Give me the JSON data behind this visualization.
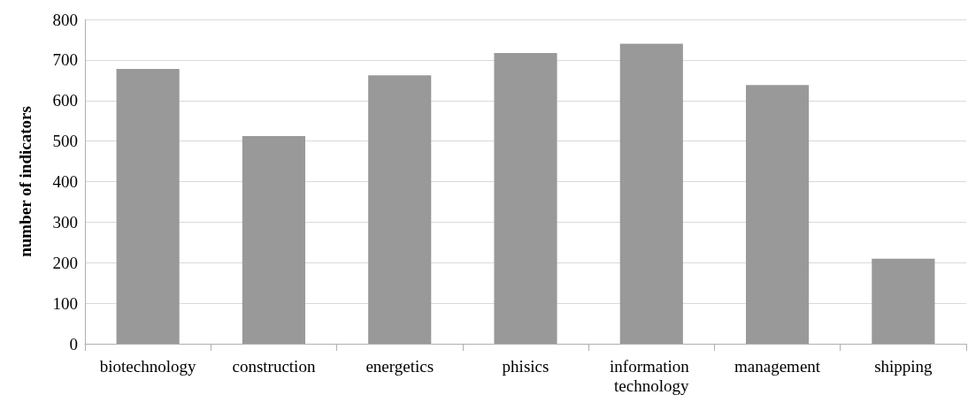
{
  "chart_data": {
    "type": "bar",
    "ylabel": "number of indicators",
    "categories": [
      "biotechnology",
      "construction",
      "energetics",
      "phisics",
      "information technology",
      "management",
      "shipping"
    ],
    "values": [
      678,
      512,
      662,
      717,
      740,
      638,
      210
    ],
    "color": "#999999",
    "ylim": [
      0,
      800
    ],
    "yticks": [
      0,
      100,
      200,
      300,
      400,
      500,
      600,
      700,
      800
    ],
    "grid": "y"
  }
}
